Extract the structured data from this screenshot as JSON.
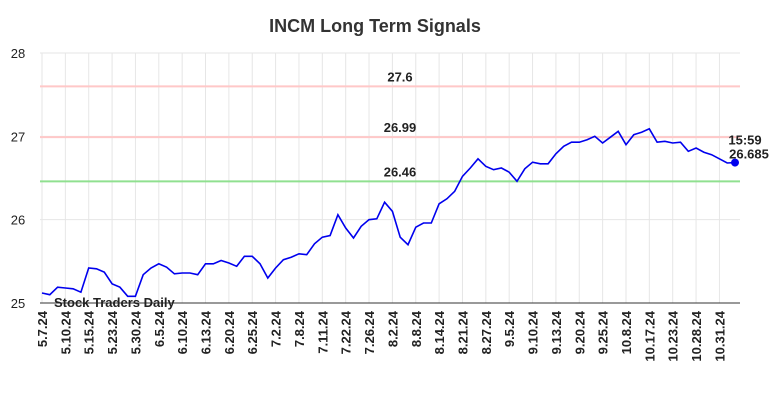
{
  "chart_data": {
    "type": "line",
    "title": "INCM Long Term Signals",
    "categories": [
      "5.7.24",
      null,
      null,
      "5.10.24",
      null,
      null,
      "5.15.24",
      null,
      null,
      "5.23.24",
      null,
      null,
      "5.30.24",
      null,
      null,
      "6.5.24",
      null,
      null,
      "6.10.24",
      null,
      null,
      "6.13.24",
      null,
      null,
      "6.20.24",
      null,
      null,
      "6.25.24",
      null,
      null,
      "7.2.24",
      null,
      null,
      "7.8.24",
      null,
      null,
      "7.11.24",
      null,
      null,
      "7.22.24",
      null,
      null,
      "7.26.24",
      null,
      null,
      "8.2.24",
      null,
      null,
      "8.8.24",
      null,
      null,
      "8.14.24",
      null,
      null,
      "8.21.24",
      null,
      null,
      "8.27.24",
      null,
      null,
      "9.5.24",
      null,
      null,
      "9.10.24",
      null,
      null,
      "9.13.24",
      null,
      null,
      "9.20.24",
      null,
      null,
      "9.25.24",
      null,
      null,
      "10.8.24",
      null,
      null,
      "10.17.24",
      null,
      null,
      "10.23.24",
      null,
      null,
      "10.28.24",
      null,
      null,
      "10.31.24",
      null,
      null
    ],
    "values": [
      25.12,
      25.1,
      25.19,
      25.18,
      25.17,
      25.13,
      25.42,
      25.41,
      25.37,
      25.23,
      25.19,
      25.08,
      25.08,
      25.34,
      25.42,
      25.47,
      25.43,
      25.35,
      25.36,
      25.36,
      25.34,
      25.47,
      25.47,
      25.51,
      25.48,
      25.44,
      25.56,
      25.56,
      25.47,
      25.3,
      25.42,
      25.52,
      25.55,
      25.59,
      25.58,
      25.71,
      25.79,
      25.81,
      26.06,
      25.9,
      25.78,
      25.92,
      26.0,
      26.01,
      26.21,
      26.1,
      25.79,
      25.7,
      25.91,
      25.96,
      25.96,
      26.19,
      26.25,
      26.34,
      26.52,
      26.62,
      26.73,
      26.64,
      26.6,
      26.62,
      26.57,
      26.46,
      26.61,
      26.69,
      26.67,
      26.67,
      26.79,
      26.88,
      26.93,
      26.93,
      26.96,
      27.0,
      26.92,
      26.99,
      27.06,
      26.9,
      27.02,
      27.05,
      27.09,
      26.93,
      26.94,
      26.92,
      26.93,
      26.82,
      26.86,
      26.81,
      26.78,
      26.73,
      26.68,
      26.685
    ],
    "color": "#0000ee",
    "hlines": [
      {
        "value": 27.6,
        "color": "#ffc8c8",
        "label_color": "#8b0000"
      },
      {
        "value": 26.99,
        "color": "#ffc8c8",
        "label_color": "#8b0000"
      },
      {
        "value": 26.46,
        "color": "#90e090",
        "label_color": "#006400"
      }
    ],
    "last_time": "15:59",
    "watermark": "Stock Traders Daily",
    "ylim": [
      25,
      28
    ],
    "yticks": [
      25,
      26,
      27,
      28
    ],
    "grid": true
  }
}
